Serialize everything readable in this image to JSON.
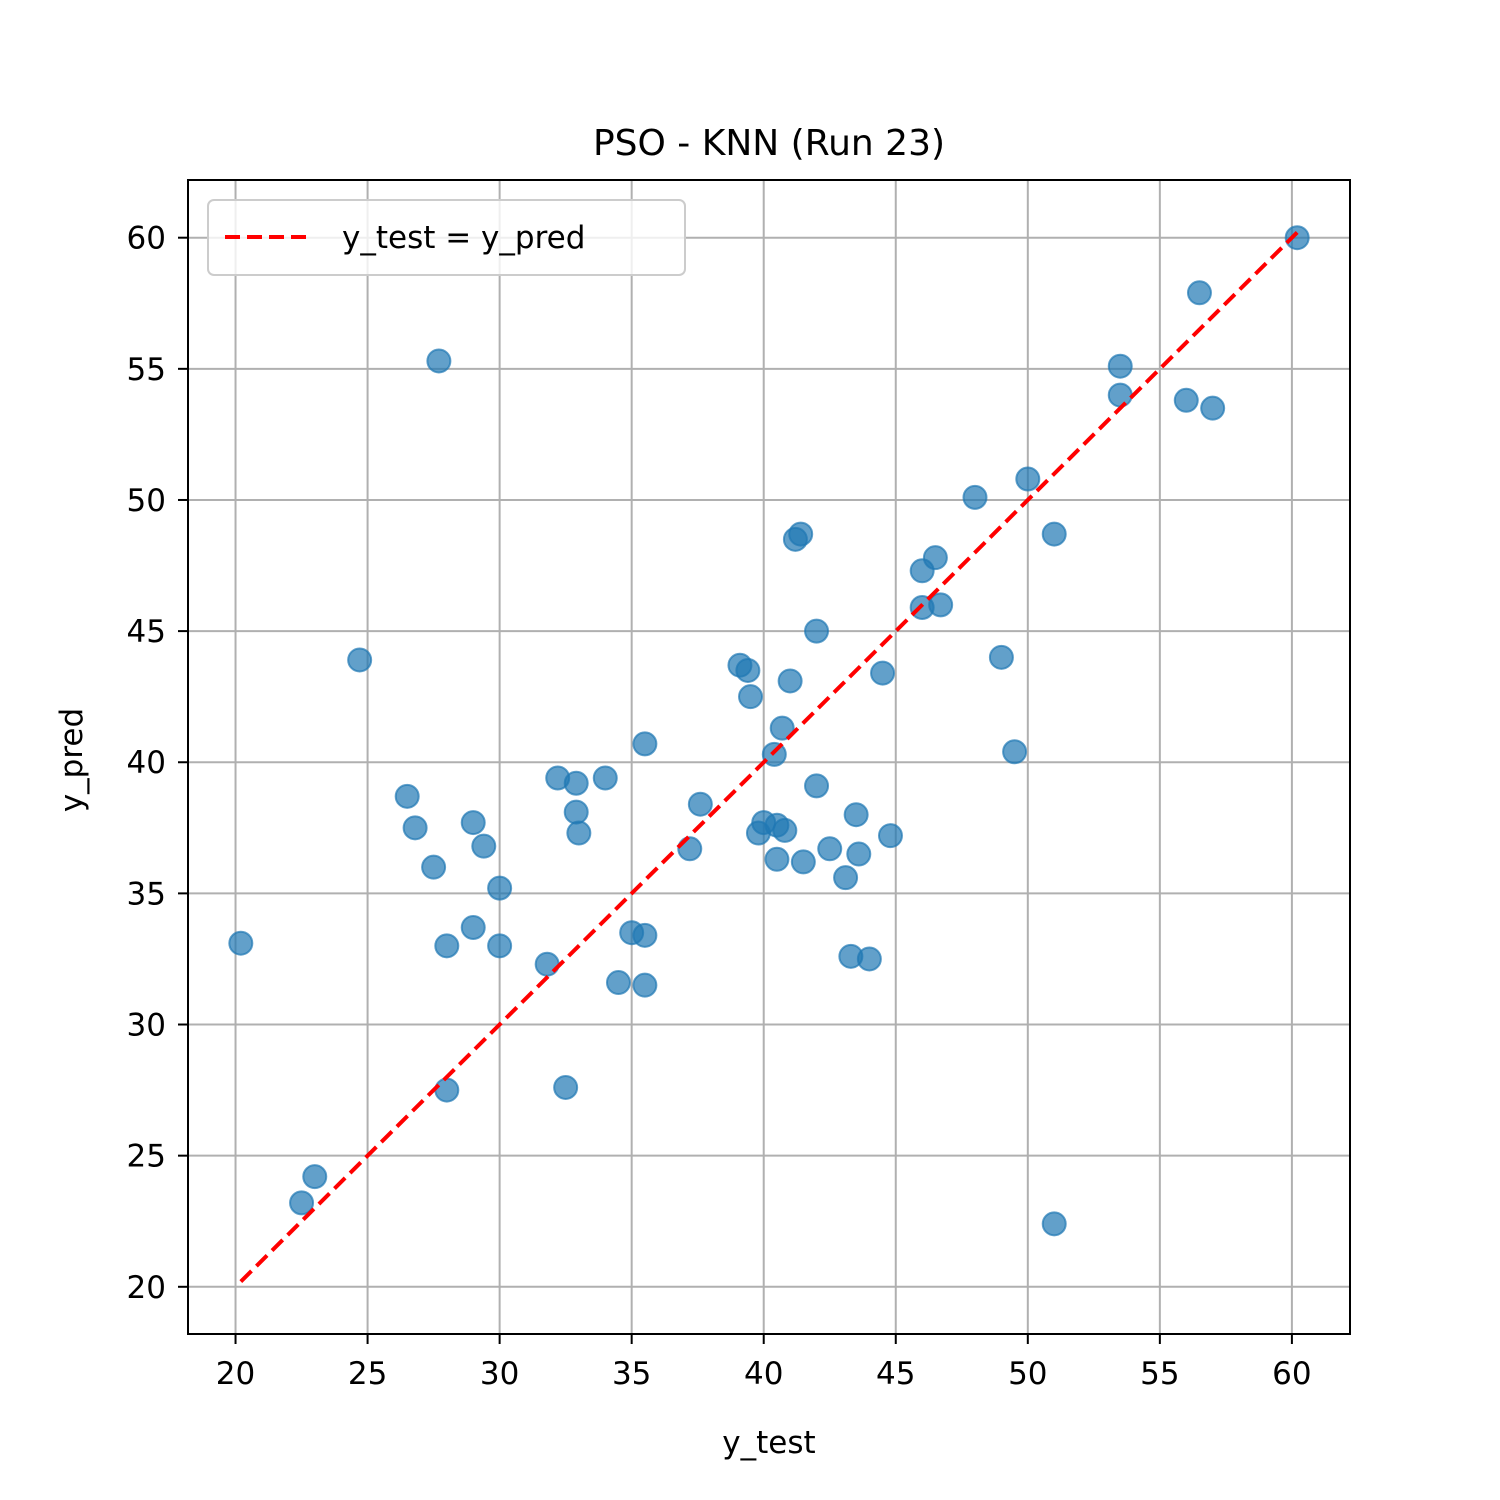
{
  "chart_data": {
    "type": "scatter",
    "title": "PSO - KNN (Run 23)",
    "xlabel": "y_test",
    "ylabel": "y_pred",
    "xlim": [
      18.2,
      62.2
    ],
    "ylim": [
      18.2,
      62.2
    ],
    "xticks": [
      "20",
      "25",
      "30",
      "35",
      "40",
      "45",
      "50",
      "55",
      "60"
    ],
    "yticks": [
      "20",
      "25",
      "30",
      "35",
      "40",
      "45",
      "50",
      "55",
      "60"
    ],
    "grid": true,
    "legend_position": "top-left",
    "colors": {
      "points": "#1f77b4",
      "reference_line": "#ff0000",
      "grid": "#b0b0b0"
    },
    "series": [
      {
        "type": "scatter",
        "points": [
          [
            20.2,
            33.1
          ],
          [
            22.5,
            23.2
          ],
          [
            23.0,
            24.2
          ],
          [
            24.7,
            43.9
          ],
          [
            26.5,
            38.7
          ],
          [
            26.8,
            37.5
          ],
          [
            27.5,
            36.0
          ],
          [
            27.7,
            55.3
          ],
          [
            28.0,
            33.0
          ],
          [
            28.0,
            27.5
          ],
          [
            29.0,
            37.7
          ],
          [
            29.0,
            33.7
          ],
          [
            29.4,
            36.8
          ],
          [
            30.0,
            35.2
          ],
          [
            30.0,
            33.0
          ],
          [
            31.8,
            32.3
          ],
          [
            32.2,
            39.4
          ],
          [
            32.5,
            27.6
          ],
          [
            32.9,
            39.2
          ],
          [
            32.9,
            38.1
          ],
          [
            33.0,
            37.3
          ],
          [
            34.0,
            39.4
          ],
          [
            34.5,
            31.6
          ],
          [
            35.0,
            33.5
          ],
          [
            35.5,
            40.7
          ],
          [
            35.5,
            33.4
          ],
          [
            35.5,
            31.5
          ],
          [
            37.2,
            36.7
          ],
          [
            37.6,
            38.4
          ],
          [
            39.1,
            43.7
          ],
          [
            39.4,
            43.5
          ],
          [
            39.5,
            42.5
          ],
          [
            39.8,
            37.3
          ],
          [
            40.0,
            37.7
          ],
          [
            40.4,
            40.3
          ],
          [
            40.5,
            36.3
          ],
          [
            40.5,
            37.6
          ],
          [
            40.7,
            41.3
          ],
          [
            40.8,
            37.4
          ],
          [
            41.0,
            43.1
          ],
          [
            41.2,
            48.5
          ],
          [
            41.4,
            48.7
          ],
          [
            41.5,
            36.2
          ],
          [
            42.0,
            45.0
          ],
          [
            42.0,
            39.1
          ],
          [
            42.5,
            36.7
          ],
          [
            43.1,
            35.6
          ],
          [
            43.3,
            32.6
          ],
          [
            43.5,
            38.0
          ],
          [
            43.6,
            36.5
          ],
          [
            44.0,
            32.5
          ],
          [
            44.5,
            43.4
          ],
          [
            44.8,
            37.2
          ],
          [
            46.0,
            47.3
          ],
          [
            46.0,
            45.9
          ],
          [
            46.5,
            47.8
          ],
          [
            46.7,
            46.0
          ],
          [
            48.0,
            50.1
          ],
          [
            49.0,
            44.0
          ],
          [
            49.5,
            40.4
          ],
          [
            50.0,
            50.8
          ],
          [
            51.0,
            48.7
          ],
          [
            51.0,
            22.4
          ],
          [
            53.5,
            55.1
          ],
          [
            53.5,
            54.0
          ],
          [
            56.0,
            53.8
          ],
          [
            56.5,
            57.9
          ],
          [
            57.0,
            53.5
          ],
          [
            60.2,
            60.0
          ]
        ]
      },
      {
        "type": "line",
        "name": "y_test = y_pred",
        "style": "dashed",
        "x": [
          20.2,
          60.2
        ],
        "y": [
          20.2,
          60.2
        ]
      }
    ]
  }
}
